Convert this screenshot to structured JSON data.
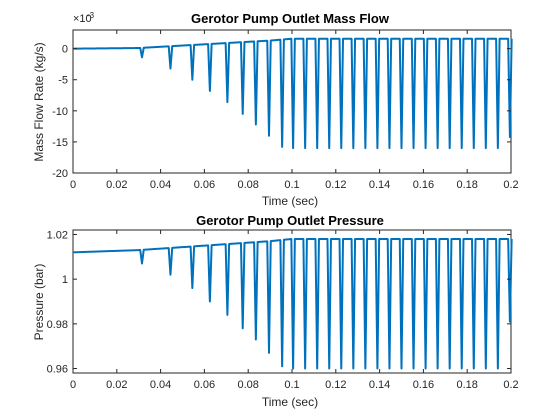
{
  "figure": {
    "background": "#ffffff"
  },
  "chart_data": [
    {
      "type": "line",
      "title": "Gerotor Pump Outlet Mass Flow",
      "xlabel": "Time (sec)",
      "ylabel": "Mass Flow Rate  (kg/s)",
      "exponent_label": "×10",
      "exponent_power": "-3",
      "xlim": [
        0,
        0.2
      ],
      "ylim": [
        -20,
        3
      ],
      "x_ticks": [
        0,
        0.02,
        0.04,
        0.06,
        0.08,
        0.1,
        0.12,
        0.14,
        0.16,
        0.18,
        0.2
      ],
      "x_tick_labels": [
        "0",
        "0.02",
        "0.04",
        "0.06",
        "0.08",
        "0.1",
        "0.12",
        "0.14",
        "0.16",
        "0.18",
        "0.2"
      ],
      "y_ticks": [
        -20,
        -15,
        -10,
        -5,
        0
      ],
      "y_tick_labels": [
        "-20",
        "-15",
        "-10",
        "-5",
        "0"
      ],
      "grid": true,
      "color": "#0072bd",
      "series": [
        {
          "baseline": [
            [
              0,
              0.0
            ],
            [
              0.03,
              0.1
            ],
            [
              0.045,
              0.4
            ],
            [
              0.06,
              0.7
            ],
            [
              0.075,
              1.0
            ],
            [
              0.09,
              1.3
            ],
            [
              0.1,
              1.6
            ],
            [
              0.2,
              1.6
            ]
          ],
          "spikes": [
            {
              "x": 0.0315,
              "min": -1.4
            },
            {
              "x": 0.0445,
              "min": -3.2
            },
            {
              "x": 0.0545,
              "min": -5.0
            },
            {
              "x": 0.0625,
              "min": -6.8
            },
            {
              "x": 0.0705,
              "min": -8.6
            },
            {
              "x": 0.0775,
              "min": -10.5
            },
            {
              "x": 0.0835,
              "min": -12.2
            },
            {
              "x": 0.0895,
              "min": -14.0
            },
            {
              "x": 0.0955,
              "min": -15.8
            },
            {
              "x": 0.1005,
              "min": -16.0
            },
            {
              "x": 0.106,
              "min": -16.0
            },
            {
              "x": 0.1115,
              "min": -16.0
            },
            {
              "x": 0.117,
              "min": -16.0
            },
            {
              "x": 0.1225,
              "min": -16.0
            },
            {
              "x": 0.128,
              "min": -16.0
            },
            {
              "x": 0.1335,
              "min": -16.0
            },
            {
              "x": 0.139,
              "min": -16.0
            },
            {
              "x": 0.1445,
              "min": -16.0
            },
            {
              "x": 0.15,
              "min": -16.0
            },
            {
              "x": 0.1555,
              "min": -16.0
            },
            {
              "x": 0.161,
              "min": -16.0
            },
            {
              "x": 0.1665,
              "min": -16.0
            },
            {
              "x": 0.172,
              "min": -16.0
            },
            {
              "x": 0.1775,
              "min": -16.0
            },
            {
              "x": 0.183,
              "min": -16.0
            },
            {
              "x": 0.1885,
              "min": -16.0
            },
            {
              "x": 0.194,
              "min": -16.0
            },
            {
              "x": 0.1995,
              "min": -14.2
            }
          ]
        }
      ]
    },
    {
      "type": "line",
      "title": "Gerotor Pump Outlet Pressure",
      "xlabel": "Time (sec)",
      "ylabel": "Pressure (bar)",
      "xlim": [
        0,
        0.2
      ],
      "ylim": [
        0.958,
        1.022
      ],
      "x_ticks": [
        0,
        0.02,
        0.04,
        0.06,
        0.08,
        0.1,
        0.12,
        0.14,
        0.16,
        0.18,
        0.2
      ],
      "x_tick_labels": [
        "0",
        "0.02",
        "0.04",
        "0.06",
        "0.08",
        "0.1",
        "0.12",
        "0.14",
        "0.16",
        "0.18",
        "0.2"
      ],
      "y_ticks": [
        0.96,
        0.98,
        1.0,
        1.02
      ],
      "y_tick_labels": [
        "0.96",
        "0.98",
        "1",
        "1.02"
      ],
      "grid": true,
      "color": "#0072bd",
      "series": [
        {
          "baseline": [
            [
              0,
              1.012
            ],
            [
              0.03,
              1.013
            ],
            [
              0.045,
              1.014
            ],
            [
              0.06,
              1.015
            ],
            [
              0.075,
              1.016
            ],
            [
              0.09,
              1.017
            ],
            [
              0.1,
              1.018
            ],
            [
              0.2,
              1.018
            ]
          ],
          "spikes": [
            {
              "x": 0.0315,
              "min": 1.007
            },
            {
              "x": 0.0445,
              "min": 1.002
            },
            {
              "x": 0.0545,
              "min": 0.996
            },
            {
              "x": 0.0625,
              "min": 0.99
            },
            {
              "x": 0.0705,
              "min": 0.984
            },
            {
              "x": 0.0775,
              "min": 0.978
            },
            {
              "x": 0.0835,
              "min": 0.973
            },
            {
              "x": 0.0895,
              "min": 0.967
            },
            {
              "x": 0.0955,
              "min": 0.961
            },
            {
              "x": 0.1005,
              "min": 0.96
            },
            {
              "x": 0.106,
              "min": 0.96
            },
            {
              "x": 0.1115,
              "min": 0.96
            },
            {
              "x": 0.117,
              "min": 0.96
            },
            {
              "x": 0.1225,
              "min": 0.96
            },
            {
              "x": 0.128,
              "min": 0.96
            },
            {
              "x": 0.1335,
              "min": 0.96
            },
            {
              "x": 0.139,
              "min": 0.96
            },
            {
              "x": 0.1445,
              "min": 0.96
            },
            {
              "x": 0.15,
              "min": 0.96
            },
            {
              "x": 0.1555,
              "min": 0.96
            },
            {
              "x": 0.161,
              "min": 0.96
            },
            {
              "x": 0.1665,
              "min": 0.96
            },
            {
              "x": 0.172,
              "min": 0.96
            },
            {
              "x": 0.1775,
              "min": 0.96
            },
            {
              "x": 0.183,
              "min": 0.96
            },
            {
              "x": 0.1885,
              "min": 0.96
            },
            {
              "x": 0.194,
              "min": 0.96
            },
            {
              "x": 0.1995,
              "min": 0.981
            }
          ]
        }
      ]
    }
  ]
}
